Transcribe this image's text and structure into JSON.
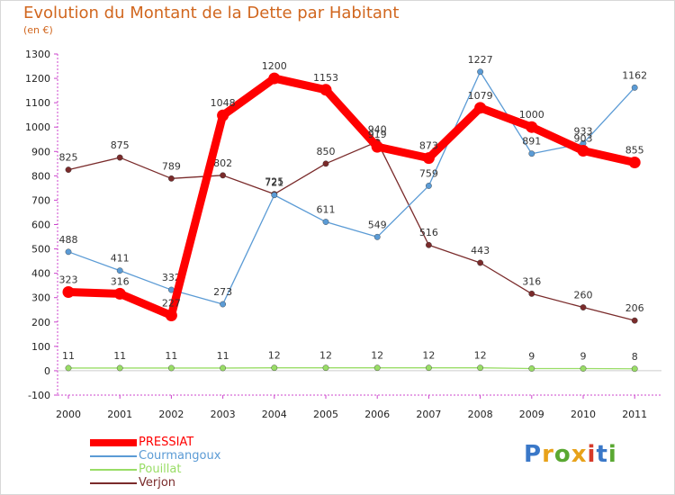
{
  "title": "Evolution du Montant de la Dette par Habitant",
  "unit_label": "(en €)",
  "logo": {
    "text": "Proxiti",
    "colors": [
      "#3a78c8",
      "#e8a21a",
      "#5aa832",
      "#e8a21a",
      "#d63a2a",
      "#3a78c8",
      "#5aa832"
    ]
  },
  "chart_data": {
    "type": "line",
    "title": "Evolution du Montant de la Dette par Habitant",
    "ylabel": "(en €)",
    "xlabel": "",
    "x": [
      "2000",
      "2001",
      "2002",
      "2003",
      "2004",
      "2005",
      "2006",
      "2007",
      "2008",
      "2009",
      "2010",
      "2011"
    ],
    "ylim": [
      -100,
      1300
    ],
    "yticks": [
      -100,
      0,
      100,
      200,
      300,
      400,
      500,
      600,
      700,
      800,
      900,
      1000,
      1100,
      1200,
      1300
    ],
    "grid": false,
    "legend_position": "bottom-left",
    "series": [
      {
        "name": "PRESSIAT",
        "color": "#ff0000",
        "values": [
          323,
          316,
          227,
          1048,
          1200,
          1153,
          919,
          873,
          1079,
          1000,
          903,
          855
        ],
        "labels": [
          "323",
          "316",
          "227",
          "1048",
          "1200",
          "1153",
          "919",
          "873",
          "1079",
          "1000",
          "903",
          "855"
        ]
      },
      {
        "name": "Courmangoux",
        "color": "#5b9bd5",
        "values": [
          488,
          411,
          332,
          273,
          721,
          611,
          549,
          759,
          1227,
          891,
          933,
          1162
        ],
        "labels": [
          "488",
          "411",
          "332",
          "273",
          "721",
          "611",
          "549",
          "759",
          "1227",
          "891",
          "933",
          "1162"
        ]
      },
      {
        "name": "Pouillat",
        "color": "#99dd66",
        "values": [
          11,
          11,
          11,
          11,
          12,
          12,
          12,
          12,
          12,
          9,
          9,
          8
        ],
        "labels": [
          "11",
          "11",
          "11",
          "11",
          "12",
          "12",
          "12",
          "12",
          "12",
          "9",
          "9",
          "8"
        ]
      },
      {
        "name": "Verjon",
        "color": "#7a2b2b",
        "values": [
          825,
          875,
          789,
          802,
          725,
          850,
          940,
          516,
          443,
          316,
          260,
          206
        ],
        "labels": [
          "825",
          "875",
          "789",
          "802",
          "725",
          "850",
          "940",
          "516",
          "443",
          "316",
          "260",
          "206"
        ]
      }
    ]
  }
}
